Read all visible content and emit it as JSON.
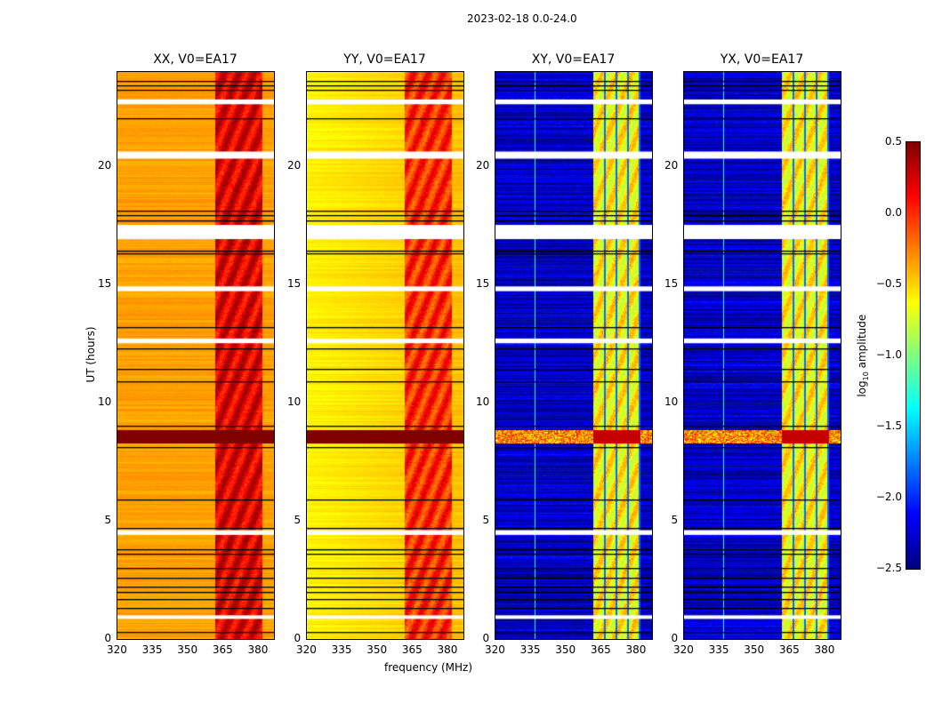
{
  "chart_data": {
    "type": "heatmap",
    "title": "2023-02-18 0.0-24.0",
    "xlabel": "frequency (MHz)",
    "ylabel": "UT (hours)",
    "xlim": [
      320,
      387
    ],
    "ylim": [
      0,
      24
    ],
    "xticks": [
      "320",
      "335",
      "350",
      "365",
      "380"
    ],
    "yticks": [
      "0",
      "5",
      "10",
      "15",
      "20"
    ],
    "colorbar": {
      "label_main": "log",
      "label_sub": "10",
      "label_rest": " amplitude",
      "range": [
        -2.5,
        0.5
      ],
      "ticks": [
        "0.5",
        "0.0",
        "−0.5",
        "−1.0",
        "−1.5",
        "−2.0",
        "−2.5"
      ],
      "colormap": "jet"
    },
    "panels": [
      {
        "title": "XX, V0=EA17",
        "baseline_log_amp": -0.35,
        "band_log_amp": 0.2
      },
      {
        "title": "YY, V0=EA17",
        "baseline_log_amp": -0.6,
        "band_log_amp": 0.0
      },
      {
        "title": "XY, V0=EA17",
        "baseline_log_amp": -2.3,
        "band_log_amp": -0.6
      },
      {
        "title": "YX, V0=EA17",
        "baseline_log_amp": -2.3,
        "band_log_amp": -0.6
      }
    ],
    "strong_band_MHz": [
      362,
      382
    ],
    "rfi_event_hours": [
      8.3,
      8.85
    ],
    "flagged_hours": [
      [
        0.85,
        1.0
      ],
      [
        4.4,
        4.6
      ],
      [
        12.5,
        12.7
      ],
      [
        14.7,
        14.9
      ],
      [
        16.9,
        17.5
      ],
      [
        20.3,
        20.6
      ],
      [
        22.6,
        22.8
      ]
    ],
    "black_lines_hours": [
      0.3,
      1.3,
      1.7,
      2.0,
      2.2,
      2.6,
      3.0,
      3.6,
      3.8,
      4.7,
      5.9,
      8.1,
      9.0,
      10.9,
      11.4,
      12.3,
      13.2,
      16.3,
      16.4,
      17.7,
      17.9,
      18.1,
      22.0,
      23.2,
      23.4,
      23.6
    ]
  }
}
